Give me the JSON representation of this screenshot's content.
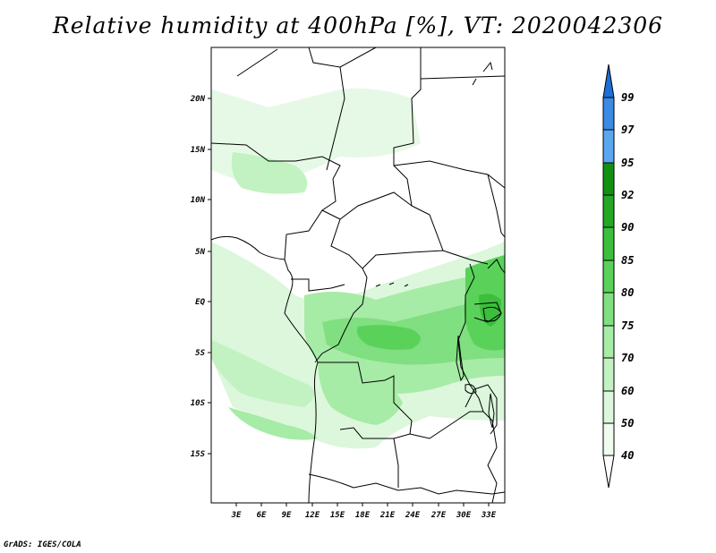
{
  "title": "Relative humidity at 400hPa [%], VT: 2020042306",
  "footer": "GrADS: IGES/COLA",
  "map": {
    "lat_labels": [
      "20N",
      "15N",
      "10N",
      "5N",
      "EQ",
      "5S",
      "10S",
      "15S"
    ],
    "lon_labels": [
      "3E",
      "6E",
      "9E",
      "12E",
      "15E",
      "18E",
      "21E",
      "24E",
      "27E",
      "30E",
      "33E"
    ]
  },
  "colorbar": {
    "labels": [
      "99",
      "97",
      "95",
      "92",
      "90",
      "85",
      "80",
      "75",
      "70",
      "60",
      "50",
      "40"
    ],
    "colors": {
      "c99": "#1e6fd6",
      "c97": "#3b8ae6",
      "c95": "#5aa6f0",
      "c92": "#129012",
      "c90": "#24a824",
      "c85": "#3cbf3c",
      "c80": "#5ad25a",
      "c75": "#80df80",
      "c70": "#a6eba6",
      "c60": "#c2f2c2",
      "c50": "#dcf7dc",
      "c40": "#effcef"
    }
  }
}
